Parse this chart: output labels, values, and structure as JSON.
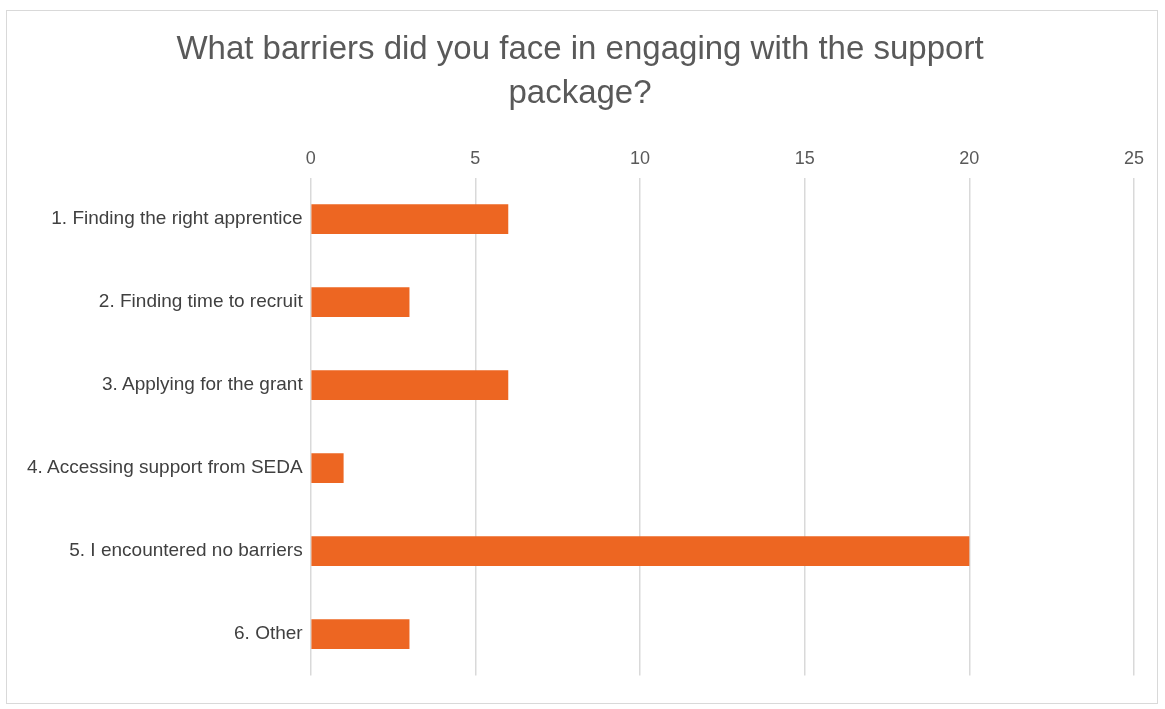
{
  "chart_data": {
    "type": "bar",
    "orientation": "horizontal",
    "title": "What barriers did you face in engaging with the support package?",
    "categories": [
      "1. Finding the right apprentice",
      "2. Finding time to recruit",
      "3. Applying for the grant",
      "4. Accessing support from SEDA",
      "5. I encountered no barriers",
      "6. Other"
    ],
    "values": [
      6,
      3,
      6,
      1,
      20,
      3
    ],
    "color": "#ed6622",
    "xlim": [
      0,
      25
    ],
    "xticks": [
      0,
      5,
      10,
      15,
      20,
      25
    ],
    "grid": "x",
    "legend": false
  }
}
